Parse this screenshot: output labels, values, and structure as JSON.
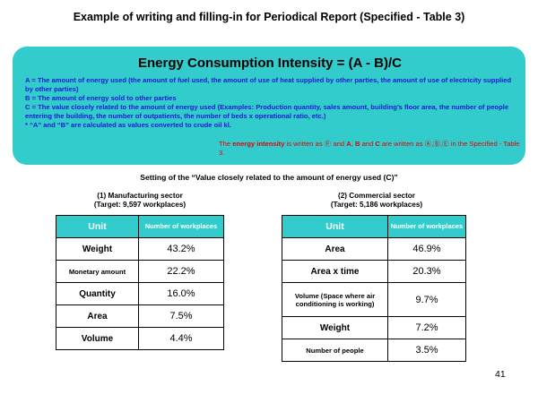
{
  "title": "Example of writing and filling-in for Periodical Report (Specified - Table 3)",
  "formula": {
    "title": "Energy Consumption Intensity = (A - B)/C",
    "definitions": [
      "A = The amount of energy used (the amount of fuel used, the amount of use of heat supplied by other parties, the amount of use of electricity supplied by other parties)",
      "B = The amount of energy sold to other parties",
      "C = The value closely related to the amount of energy used (Examples: Production quantity, sales amount, building’s floor area, the number of people entering the building, the number of outpatients, the number of beds x operational ratio, etc.)",
      "* “A” and “B” are calculated as values converted to crude oil kl."
    ],
    "note": {
      "part1": "The ",
      "keyword": "energy intensity",
      "part2": " is written as ",
      "code1": "Ⓕ",
      "part3": " and ",
      "a": "A",
      "sep1": ", ",
      "b": "B",
      "part4": " and ",
      "c": "C",
      "part5": " are written as ",
      "codes": "Ⓐ,Ⓑ,Ⓔ",
      "part6": " in the Specified - Table 3."
    }
  },
  "setting_title": "Setting of the “Value closely related to the amount of energy used (C)”",
  "manufacturing": {
    "title": "(1) Manufacturing sector",
    "target": "(Target: 9,597 workplaces)",
    "header_unit": "Unit",
    "header_count": "Number of workplaces",
    "rows": [
      {
        "unit": "Weight",
        "value": "43.2%"
      },
      {
        "unit": "Monetary amount",
        "value": "22.2%"
      },
      {
        "unit": "Quantity",
        "value": "16.0%"
      },
      {
        "unit": "Area",
        "value": "7.5%"
      },
      {
        "unit": "Volume",
        "value": "4.4%"
      }
    ]
  },
  "commercial": {
    "title": "(2) Commercial sector",
    "target": "(Target: 5,186 workplaces)",
    "header_unit": "Unit",
    "header_count": "Number of workplaces",
    "rows": [
      {
        "unit": "Area",
        "value": "46.9%"
      },
      {
        "unit": "Area x time",
        "value": "20.3%"
      },
      {
        "unit": "Volume (Space where air conditioning is working)",
        "value": "9.7%"
      },
      {
        "unit": "Weight",
        "value": "7.2%"
      },
      {
        "unit": "Number of people",
        "value": "3.5%"
      }
    ]
  },
  "page_number": "41",
  "colors": {
    "accent": "#33cccc",
    "definitions": "#1a1ad0",
    "note": "#e60000"
  }
}
